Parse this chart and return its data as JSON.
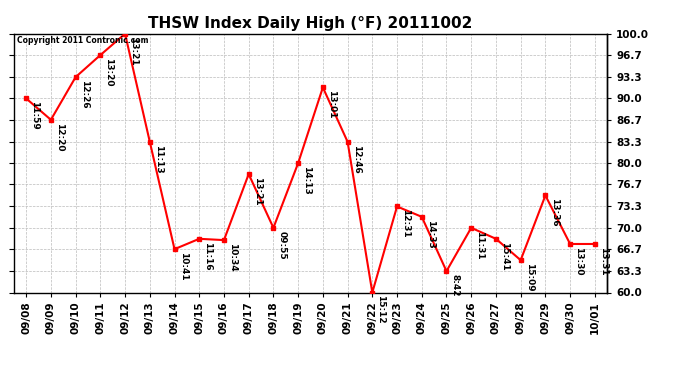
{
  "title": "THSW Index Daily High (°F) 20111002",
  "copyright": "Copyright 2011 Contronic.com",
  "dates": [
    "09/08",
    "09/09",
    "09/10",
    "09/11",
    "09/12",
    "09/13",
    "09/14",
    "09/15",
    "09/16",
    "09/17",
    "09/18",
    "09/19",
    "09/20",
    "09/21",
    "09/22",
    "09/23",
    "09/24",
    "09/25",
    "09/26",
    "09/27",
    "09/28",
    "09/29",
    "09/30",
    "10/01"
  ],
  "values": [
    90.0,
    86.7,
    93.3,
    96.7,
    100.0,
    83.3,
    66.7,
    68.3,
    68.1,
    78.3,
    70.0,
    80.0,
    91.7,
    83.3,
    60.0,
    73.3,
    71.7,
    63.3,
    70.0,
    68.3,
    65.0,
    75.0,
    67.5,
    67.5
  ],
  "time_labels": [
    "11:59",
    "12:20",
    "12:26",
    "13:20",
    "13:21",
    "11:13",
    "10:41",
    "11:16",
    "10:34",
    "13:21",
    "09:55",
    "14:13",
    "13:01",
    "12:46",
    "15:12",
    "12:31",
    "14:33",
    "8:42",
    "11:31",
    "15:41",
    "15:09",
    "13:36",
    "13:30",
    "13:31"
  ],
  "ylim": [
    60.0,
    100.0
  ],
  "yticks": [
    60.0,
    63.3,
    66.7,
    70.0,
    73.3,
    76.7,
    80.0,
    83.3,
    86.7,
    90.0,
    93.3,
    96.7,
    100.0
  ],
  "line_color": "#ff0000",
  "marker_color": "#ff0000",
  "bg_color": "#ffffff",
  "grid_color": "#bbbbbb",
  "title_fontsize": 11,
  "label_fontsize": 6.5,
  "tick_fontsize": 7.5,
  "figwidth": 6.9,
  "figheight": 3.75,
  "dpi": 100
}
